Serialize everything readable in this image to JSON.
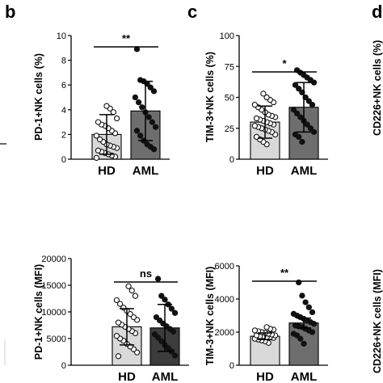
{
  "panel_letters": [
    "b",
    "c",
    "d"
  ],
  "edge_titles": [
    "CD226+NK cells (%)",
    "CD226+NK cells (MFI)"
  ],
  "chart_data": [
    {
      "type": "bar",
      "title": "",
      "ylabel": "PD-1+NK cells (%)",
      "xlabel": "",
      "categories": [
        "HD",
        "AML"
      ],
      "values": [
        2.0,
        3.9
      ],
      "errors": [
        1.6,
        2.4
      ],
      "ylim": [
        0,
        10
      ],
      "yticks": [
        "0",
        "2",
        "4",
        "6",
        "8",
        "10"
      ],
      "significance": "**",
      "bar_colors": [
        "#d9d9d9",
        "#6e6e6e"
      ],
      "points": [
        [
          0.1,
          0.2,
          0.3,
          0.4,
          0.5,
          0.6,
          0.7,
          0.9,
          1.0,
          1.1,
          1.2,
          1.4,
          1.6,
          1.9,
          2.1,
          2.3,
          2.5,
          2.7,
          2.8,
          3.0,
          3.3,
          3.8,
          4.1,
          4.3
        ],
        [
          0.8,
          1.0,
          1.2,
          1.5,
          1.9,
          2.3,
          2.6,
          3.0,
          3.4,
          3.8,
          4.2,
          4.6,
          5.0,
          5.5,
          5.8,
          6.1,
          6.3,
          6.4,
          8.9
        ]
      ]
    },
    {
      "type": "bar",
      "title": "",
      "ylabel": "TIM-3+NK cells (%)",
      "xlabel": "",
      "categories": [
        "HD",
        "AML"
      ],
      "values": [
        30,
        42
      ],
      "errors": [
        13,
        20
      ],
      "ylim": [
        0,
        100
      ],
      "yticks": [
        "0",
        "25",
        "50",
        "75",
        "100"
      ],
      "significance": "*",
      "bar_colors": [
        "#d9d9d9",
        "#6e6e6e"
      ],
      "points": [
        [
          12,
          14,
          16,
          18,
          20,
          22,
          23,
          24,
          25,
          26,
          27,
          28,
          29,
          30,
          31,
          32,
          33,
          34,
          35,
          36,
          38,
          40,
          42,
          44,
          46,
          48,
          50,
          53
        ],
        [
          14,
          18,
          20,
          22,
          25,
          28,
          31,
          34,
          37,
          40,
          44,
          47,
          50,
          54,
          57,
          60,
          62,
          64,
          66,
          68,
          70,
          72
        ]
      ]
    },
    {
      "type": "bar",
      "title": "",
      "ylabel": "PD-1+NK cells (MFI)",
      "xlabel": "",
      "categories": [
        "HD",
        "AML"
      ],
      "values": [
        7200,
        7000
      ],
      "errors": [
        3400,
        4400
      ],
      "ylim": [
        0,
        20000
      ],
      "yticks": [
        "0",
        "5000",
        "10000",
        "15000",
        "20000"
      ],
      "significance": "ns",
      "bar_colors": [
        "#d9d9d9",
        "#3c3c3c"
      ],
      "points": [
        [
          1700,
          2400,
          3000,
          3500,
          4000,
          4600,
          5000,
          5500,
          6000,
          6400,
          6800,
          7200,
          7600,
          8000,
          8500,
          9000,
          9600,
          10200,
          10800,
          11500,
          12200,
          13000,
          14000,
          14800
        ],
        [
          1800,
          2600,
          3200,
          3800,
          4500,
          5200,
          5800,
          6300,
          6800,
          7300,
          7800,
          8400,
          9000,
          9800,
          10600,
          11400,
          12300,
          13000,
          16200
        ]
      ]
    },
    {
      "type": "bar",
      "title": "",
      "ylabel": "TIM-3+NK cells (MFI)",
      "xlabel": "",
      "categories": [
        "HD",
        "AML"
      ],
      "values": [
        1750,
        2550
      ],
      "errors": [
        200,
        300
      ],
      "ylim": [
        0,
        6000
      ],
      "yticks": [
        "0",
        "2000",
        "4000",
        "6000"
      ],
      "significance": "**",
      "bar_colors": [
        "#d9d9d9",
        "#6e6e6e"
      ],
      "points": [
        [
          1350,
          1450,
          1500,
          1550,
          1600,
          1650,
          1700,
          1700,
          1750,
          1750,
          1800,
          1800,
          1850,
          1900,
          1950,
          2000,
          2050,
          2100,
          2150,
          2200,
          2300
        ],
        [
          1300,
          1600,
          1800,
          1900,
          2000,
          2100,
          2200,
          2300,
          2350,
          2400,
          2500,
          2600,
          2700,
          2800,
          2900,
          3000,
          3100,
          3200,
          3500,
          3800,
          4200,
          5000
        ]
      ]
    }
  ]
}
